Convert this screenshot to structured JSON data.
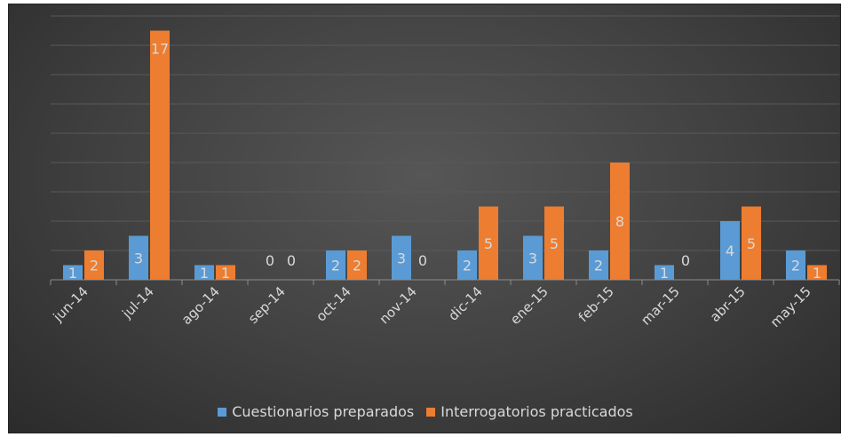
{
  "chart_data": {
    "type": "bar",
    "categories": [
      "jun-14",
      "jul-14",
      "ago-14",
      "sep-14",
      "oct-14",
      "nov-14",
      "dic-14",
      "ene-15",
      "feb-15",
      "mar-15",
      "abr-15",
      "may-15"
    ],
    "series": [
      {
        "name": "Cuestionarios preparados",
        "values": [
          1,
          3,
          1,
          0,
          2,
          3,
          2,
          3,
          2,
          1,
          4,
          2
        ],
        "color": "#5b9bd5"
      },
      {
        "name": "Interrogatorios practicados",
        "values": [
          2,
          17,
          1,
          0,
          2,
          0,
          5,
          5,
          8,
          0,
          5,
          1
        ],
        "color": "#ed7d31"
      }
    ],
    "ylim": [
      0,
      18
    ],
    "grid": true,
    "legend_position": "bottom"
  }
}
